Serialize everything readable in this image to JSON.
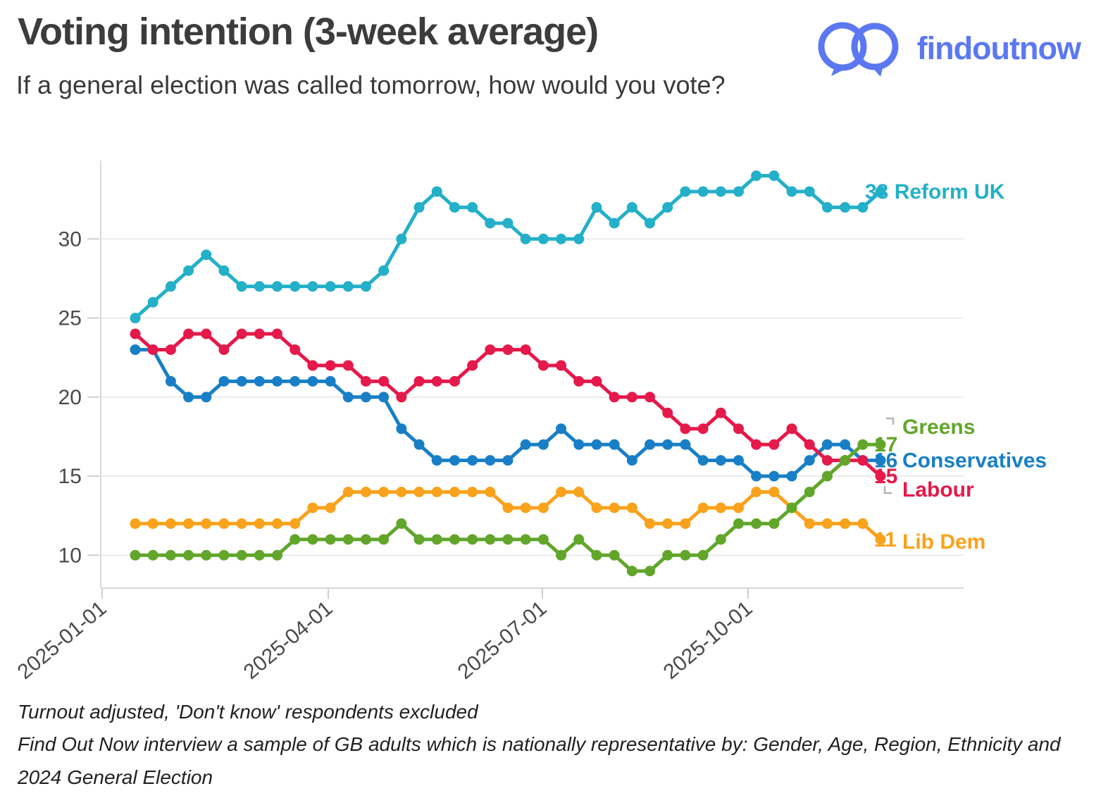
{
  "page": {
    "title": "Voting intention (3-week average)",
    "subtitle": "If a general election was called tomorrow, how would you vote?",
    "brand": "findoutnow",
    "footnotes": [
      "Turnout adjusted, 'Don't know' respondents excluded",
      "Find Out Now interview a sample of GB adults which is nationally representative by: Gender, Age, Region, Ethnicity and 2024 General Election"
    ]
  },
  "chart_data": {
    "type": "line",
    "title": "Voting intention (3-week average)",
    "subtitle": "If a general election was called tomorrow, how would you vote?",
    "cadence": "weekly points, 3-week rolling average",
    "x_start_approx": "2025-01-12",
    "x_interval_days": 7,
    "x_tick_labels": [
      "2025-01-01",
      "2025-04-01",
      "2025-07-01",
      "2025-10-01"
    ],
    "y_ticks": [
      10,
      15,
      20,
      25,
      30
    ],
    "ylim": [
      8.5,
      35
    ],
    "grid": "horizontal",
    "legend_position": "right-edge labels",
    "series": [
      {
        "name": "Reform UK",
        "color": "#23b0c8",
        "end_value": 33,
        "values": [
          25,
          26,
          27,
          28,
          29,
          28,
          27,
          27,
          27,
          27,
          27,
          27,
          27,
          27,
          28,
          30,
          32,
          33,
          32,
          32,
          31,
          31,
          30,
          30,
          30,
          30,
          32,
          31,
          32,
          31,
          32,
          33,
          33,
          33,
          33,
          34,
          34,
          33,
          33,
          32,
          32,
          32,
          33
        ]
      },
      {
        "name": "Labour",
        "color": "#e5194a",
        "end_value": 15,
        "values": [
          24,
          23,
          23,
          24,
          24,
          23,
          24,
          24,
          24,
          23,
          22,
          22,
          22,
          21,
          21,
          20,
          21,
          21,
          21,
          22,
          23,
          23,
          23,
          22,
          22,
          21,
          21,
          20,
          20,
          20,
          19,
          18,
          18,
          19,
          18,
          17,
          17,
          18,
          17,
          16,
          16,
          16,
          15
        ]
      },
      {
        "name": "Conservatives",
        "color": "#187fc6",
        "end_value": 16,
        "values": [
          23,
          23,
          21,
          20,
          20,
          21,
          21,
          21,
          21,
          21,
          21,
          21,
          20,
          20,
          20,
          18,
          17,
          16,
          16,
          16,
          16,
          16,
          17,
          17,
          18,
          17,
          17,
          17,
          16,
          17,
          17,
          17,
          16,
          16,
          16,
          15,
          15,
          15,
          16,
          17,
          17,
          16,
          16
        ]
      },
      {
        "name": "Greens",
        "color": "#61a62b",
        "end_value": 17,
        "values": [
          10,
          10,
          10,
          10,
          10,
          10,
          10,
          10,
          10,
          11,
          11,
          11,
          11,
          11,
          11,
          12,
          11,
          11,
          11,
          11,
          11,
          11,
          11,
          11,
          10,
          11,
          10,
          10,
          9,
          9,
          10,
          10,
          10,
          11,
          12,
          12,
          12,
          13,
          14,
          15,
          16,
          17,
          17
        ]
      },
      {
        "name": "Lib Dem",
        "color": "#f9a21c",
        "end_value": 11,
        "values": [
          12,
          12,
          12,
          12,
          12,
          12,
          12,
          12,
          12,
          12,
          13,
          13,
          14,
          14,
          14,
          14,
          14,
          14,
          14,
          14,
          14,
          13,
          13,
          13,
          14,
          14,
          13,
          13,
          13,
          12,
          12,
          12,
          13,
          13,
          13,
          14,
          14,
          13,
          12,
          12,
          12,
          12,
          11
        ]
      }
    ]
  }
}
